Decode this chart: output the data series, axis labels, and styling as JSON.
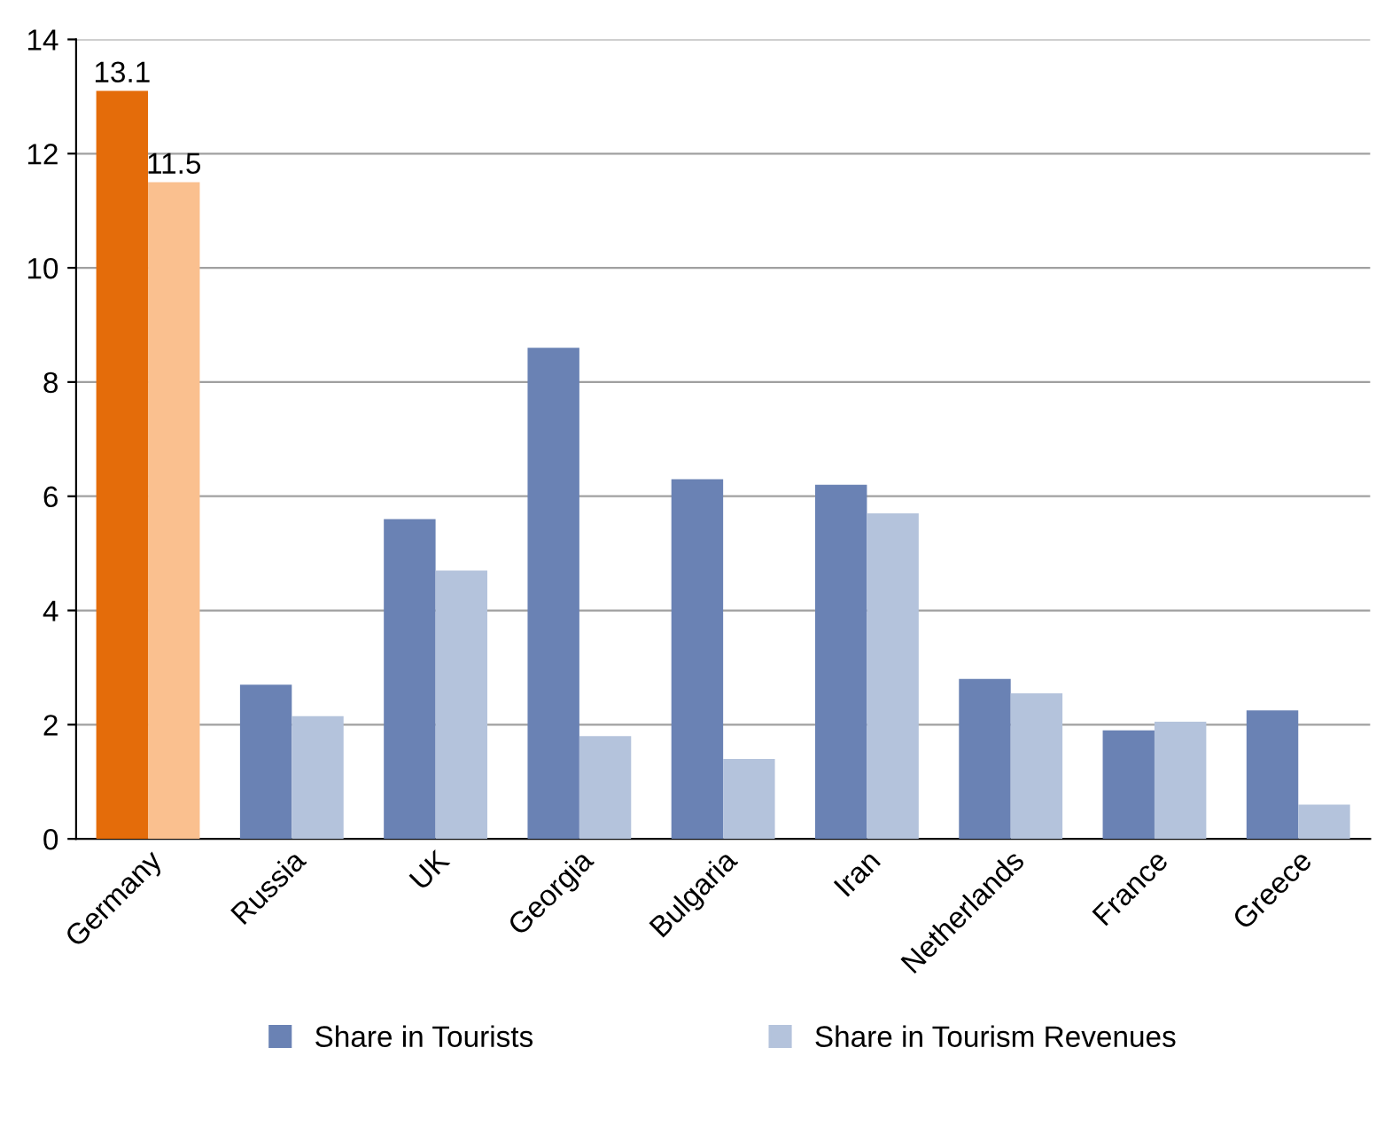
{
  "chart_data": {
    "type": "bar",
    "categories": [
      "Germany",
      "Russia",
      "UK",
      "Georgia",
      "Bulgaria",
      "Iran",
      "Netherlands",
      "France",
      "Greece"
    ],
    "series": [
      {
        "name": "Share in Tourists",
        "color": "#6a82b4",
        "colors": [
          "#e46c0a",
          "#6a82b4",
          "#6a82b4",
          "#6a82b4",
          "#6a82b4",
          "#6a82b4",
          "#6a82b4",
          "#6a82b4",
          "#6a82b4"
        ],
        "values": [
          13.1,
          2.7,
          5.6,
          8.6,
          6.3,
          6.2,
          2.8,
          1.9,
          2.25
        ],
        "value_labels": [
          "13.1",
          null,
          null,
          null,
          null,
          null,
          null,
          null,
          null
        ]
      },
      {
        "name": "Share in Tourism Revenues",
        "color": "#b4c3dc",
        "colors": [
          "#fac08f",
          "#b4c3dc",
          "#b4c3dc",
          "#b4c3dc",
          "#b4c3dc",
          "#b4c3dc",
          "#b4c3dc",
          "#b4c3dc",
          "#b4c3dc"
        ],
        "values": [
          11.5,
          2.15,
          4.7,
          1.8,
          1.4,
          5.7,
          2.55,
          2.05,
          0.6
        ],
        "value_labels": [
          "11.5",
          null,
          null,
          null,
          null,
          null,
          null,
          null,
          null
        ]
      }
    ],
    "ylim": [
      0,
      14
    ],
    "yticks": [
      0,
      2,
      4,
      6,
      8,
      10,
      12,
      14
    ],
    "grid": "y",
    "legend": "bottom"
  }
}
